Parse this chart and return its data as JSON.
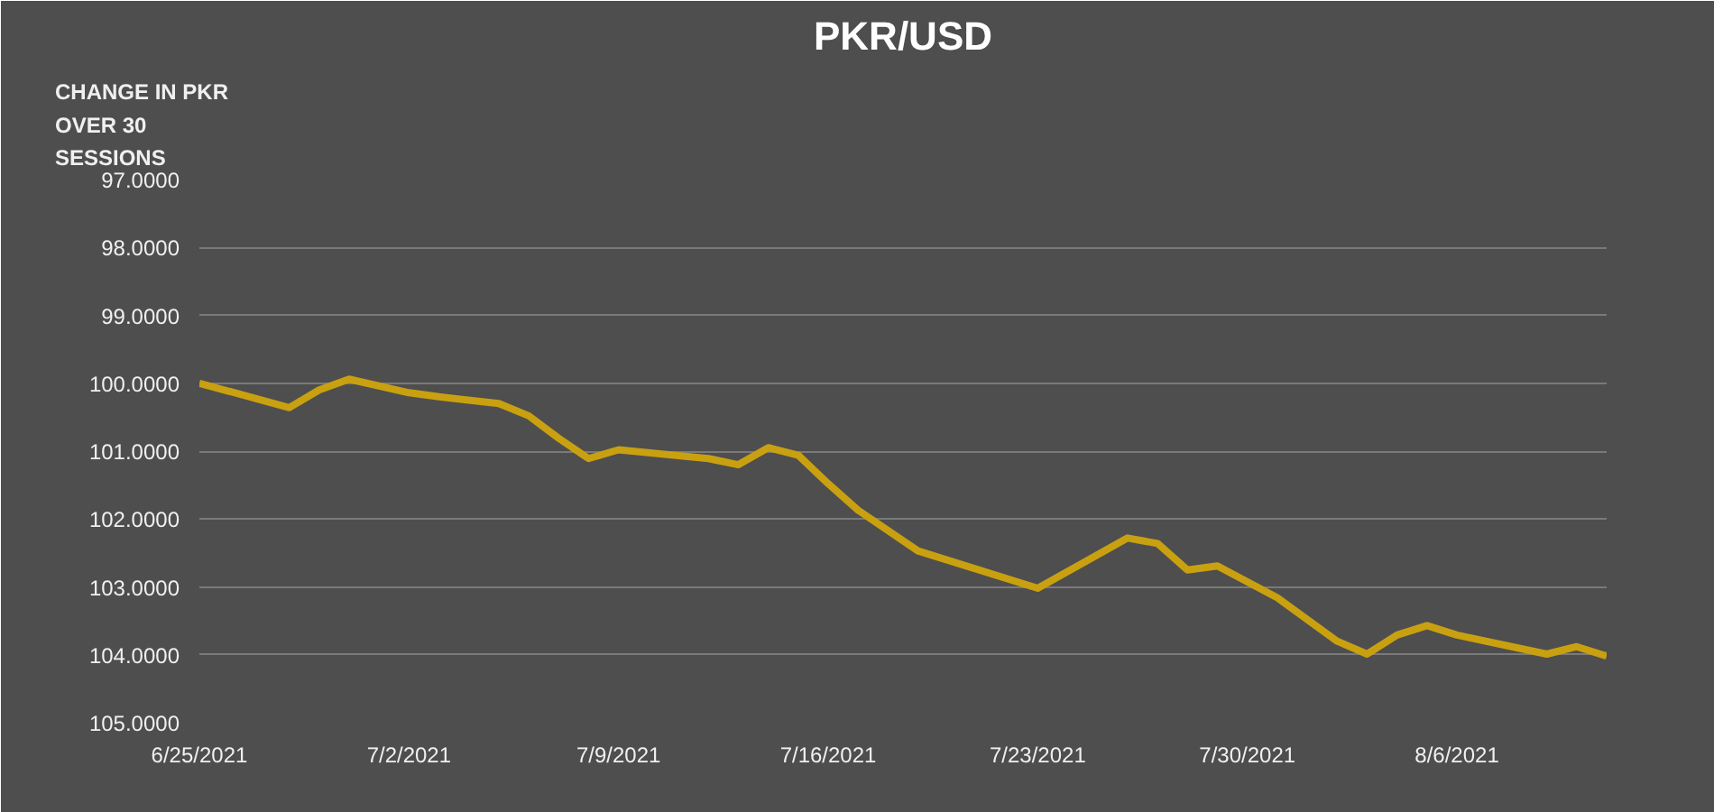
{
  "chart_data": {
    "type": "line",
    "title": "PKR/USD",
    "ylabel": "CHANGE IN PKR OVER 30 SESSIONS",
    "x": [
      "2021-06-25",
      "2021-06-28",
      "2021-06-29",
      "2021-06-30",
      "2021-07-02",
      "2021-07-03",
      "2021-07-05",
      "2021-07-06",
      "2021-07-07",
      "2021-07-08",
      "2021-07-09",
      "2021-07-12",
      "2021-07-13",
      "2021-07-14",
      "2021-07-15",
      "2021-07-16",
      "2021-07-17",
      "2021-07-19",
      "2021-07-23",
      "2021-07-26",
      "2021-07-27",
      "2021-07-28",
      "2021-07-29",
      "2021-07-31",
      "2021-08-02",
      "2021-08-03",
      "2021-08-04",
      "2021-08-05",
      "2021-08-06",
      "2021-08-09",
      "2021-08-10",
      "2021-08-11"
    ],
    "series": [
      {
        "color": "#c9a010",
        "values": [
          100.0,
          100.36,
          100.1,
          99.94,
          100.14,
          100.2,
          100.3,
          100.48,
          100.81,
          101.11,
          100.98,
          101.11,
          101.2,
          100.95,
          101.06,
          101.48,
          101.87,
          102.47,
          103.02,
          102.28,
          102.36,
          102.75,
          102.69,
          103.16,
          103.8,
          103.99,
          103.71,
          103.57,
          103.71,
          103.99,
          103.88,
          104.02
        ]
      }
    ],
    "xlim": [
      "2021-06-25",
      "2021-08-11"
    ],
    "xticks": [
      {
        "value": "2021-06-25",
        "label": "6/25/2021"
      },
      {
        "value": "2021-07-02",
        "label": "7/2/2021"
      },
      {
        "value": "2021-07-09",
        "label": "7/9/2021"
      },
      {
        "value": "2021-07-16",
        "label": "7/16/2021"
      },
      {
        "value": "2021-07-23",
        "label": "7/23/2021"
      },
      {
        "value": "2021-07-30",
        "label": "7/30/2021"
      },
      {
        "value": "2021-08-06",
        "label": "8/6/2021"
      }
    ],
    "ylim": [
      105,
      97
    ],
    "yticks": [
      {
        "value": 97,
        "label": "97.0000"
      },
      {
        "value": 98,
        "label": "98.0000"
      },
      {
        "value": 99,
        "label": "99.0000"
      },
      {
        "value": 100,
        "label": "100.0000"
      },
      {
        "value": 101,
        "label": "101.0000"
      },
      {
        "value": 102,
        "label": "102.0000"
      },
      {
        "value": 103,
        "label": "103.0000"
      },
      {
        "value": 104,
        "label": "104.0000"
      },
      {
        "value": 105,
        "label": "105.0000"
      }
    ],
    "grid": "y",
    "line_style": "solid",
    "marker": "none"
  }
}
